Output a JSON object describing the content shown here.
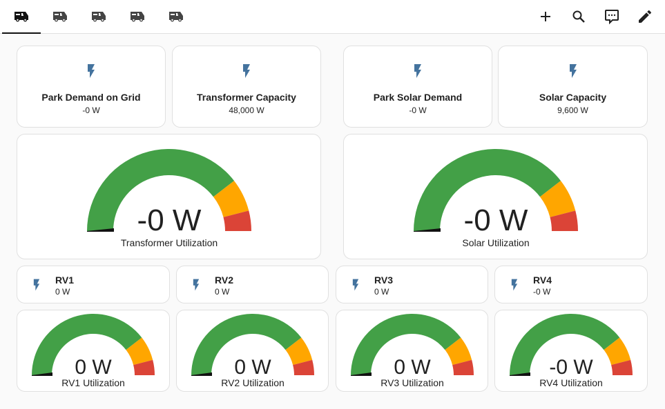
{
  "header": {
    "tabs": [
      {
        "icon": "rv-truck-icon"
      },
      {
        "icon": "rv-truck-icon"
      },
      {
        "icon": "rv-truck-icon"
      },
      {
        "icon": "rv-truck-icon"
      },
      {
        "icon": "rv-truck-icon"
      }
    ],
    "actions": [
      "plus-icon",
      "search-icon",
      "assist-icon",
      "pencil-icon"
    ]
  },
  "entities": [
    {
      "name": "Park Demand on Grid",
      "state": "-0 W"
    },
    {
      "name": "Transformer Capacity",
      "state": "48,000 W"
    },
    {
      "name": "Park Solar Demand",
      "state": "-0 W"
    },
    {
      "name": "Solar Capacity",
      "state": "9,600 W"
    }
  ],
  "big_gauges": [
    {
      "value": "-0 W",
      "label": "Transformer Utilization",
      "fraction": 0
    },
    {
      "value": "-0 W",
      "label": "Solar Utilization",
      "fraction": 0
    }
  ],
  "rvs": [
    {
      "name": "RV1",
      "state": "0 W"
    },
    {
      "name": "RV2",
      "state": "0 W"
    },
    {
      "name": "RV3",
      "state": "0 W"
    },
    {
      "name": "RV4",
      "state": "-0 W"
    }
  ],
  "small_gauges": [
    {
      "value": "0 W",
      "label": "RV1 Utilization",
      "fraction": 0
    },
    {
      "value": "0 W",
      "label": "RV2 Utilization",
      "fraction": 0
    },
    {
      "value": "0 W",
      "label": "RV3 Utilization",
      "fraction": 0
    },
    {
      "value": "-0 W",
      "label": "RV4 Utilization",
      "fraction": 0
    }
  ],
  "colors": {
    "green": "#43a047",
    "yellow": "#ffa600",
    "red": "#db4437",
    "icon": "#44739e"
  },
  "severity": {
    "yellow_from": 0.79,
    "red_from": 0.92
  }
}
